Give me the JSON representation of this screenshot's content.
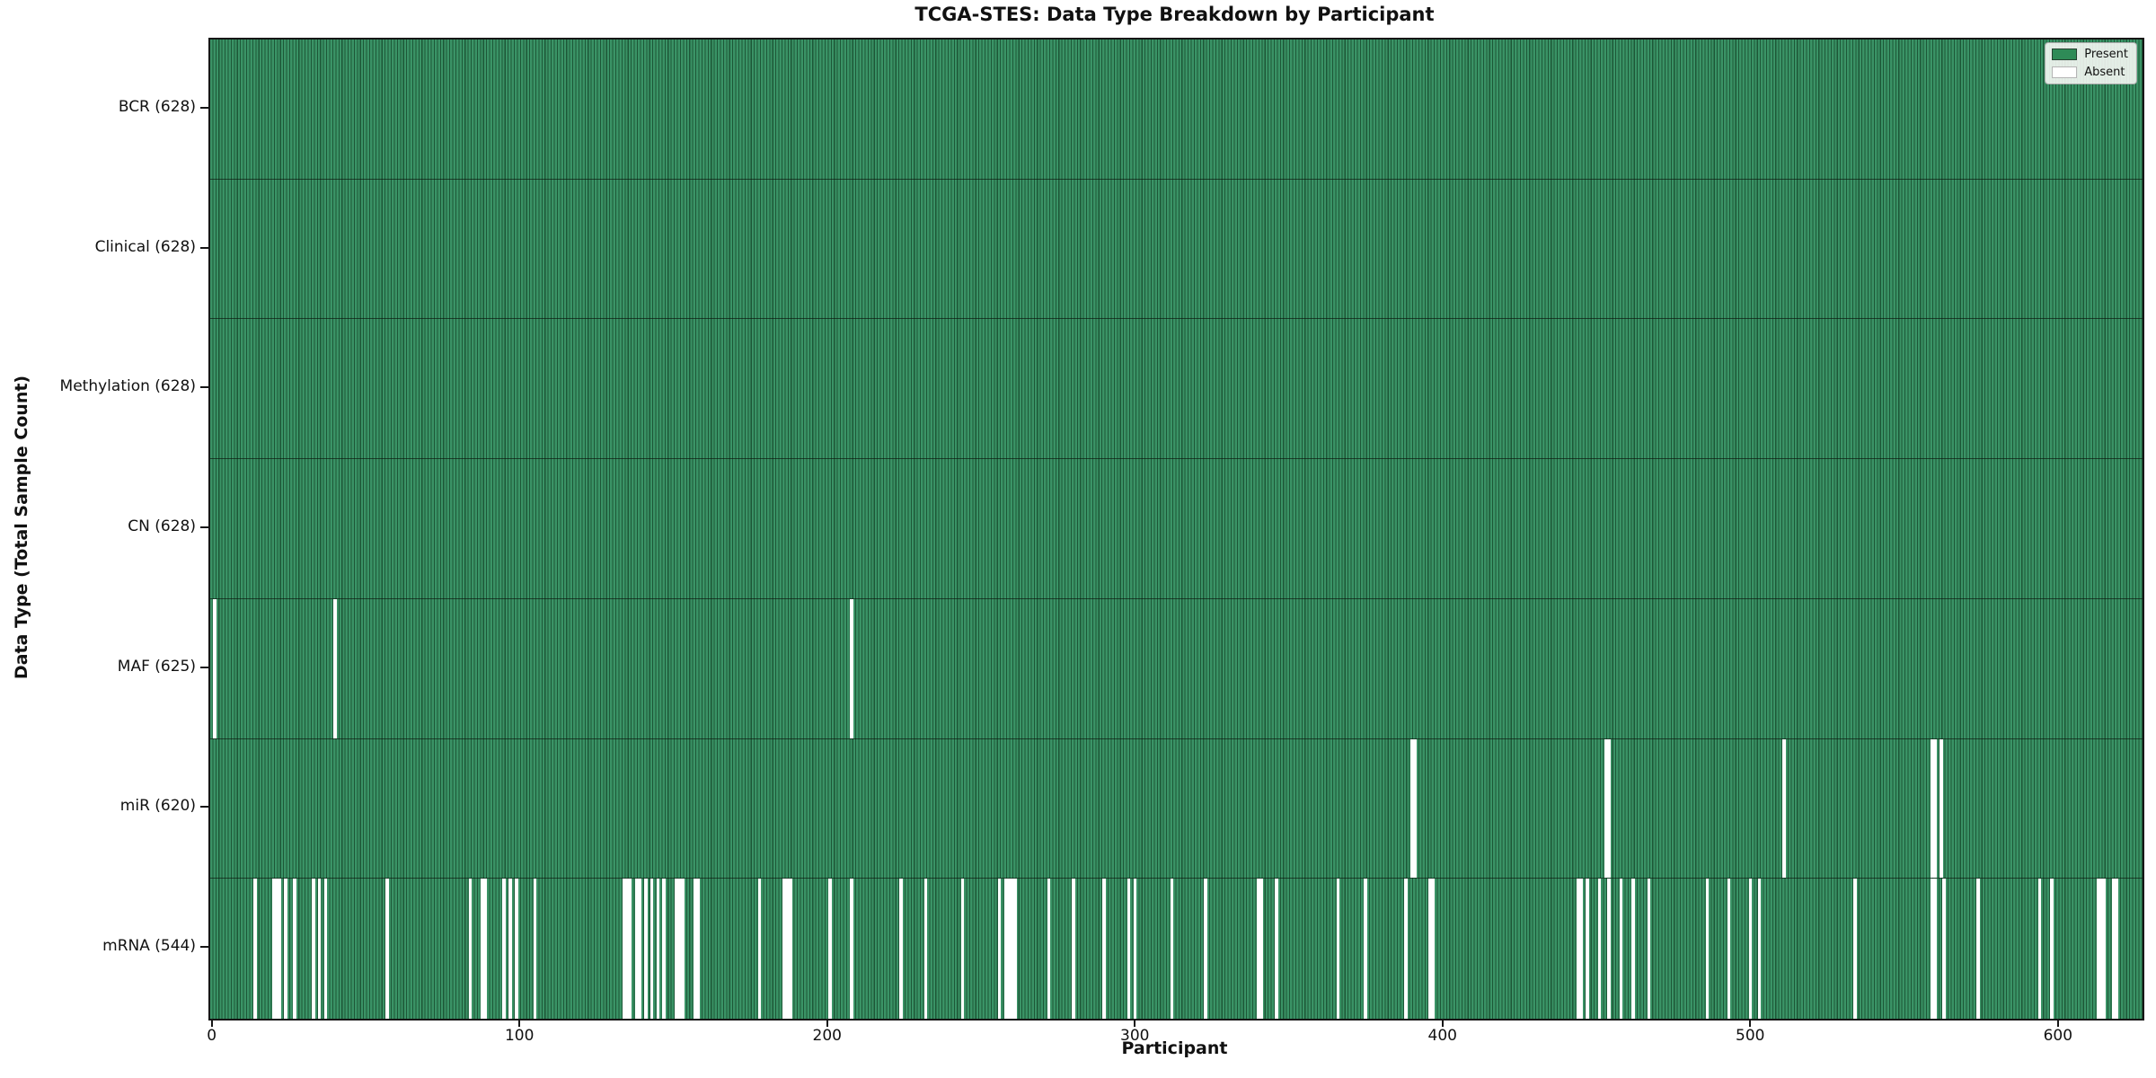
{
  "chart_data": {
    "type": "heatmap",
    "title": "TCGA-STES: Data Type Breakdown by Participant",
    "xlabel": "Participant",
    "ylabel": "Data Type (Total Sample Count)",
    "x_ticks": [
      0,
      100,
      200,
      300,
      400,
      500,
      600
    ],
    "xlim": [
      -0.5,
      627.5
    ],
    "n_participants": 628,
    "grid": false,
    "legend": {
      "position": "upper-right",
      "entries": [
        {
          "label": "Present",
          "color": "#2e8b57"
        },
        {
          "label": "Absent",
          "color": "#ffffff"
        }
      ]
    },
    "colors": {
      "present": "#2e8b57",
      "present_stripe_light": "#3a9366",
      "present_stripe_dark": "#1d5737",
      "absent": "#ffffff",
      "frame": "#161616"
    },
    "rows": [
      {
        "data_type": "BCR",
        "label": "BCR (628)",
        "present_count": 628,
        "total": 628,
        "absent_participants": []
      },
      {
        "data_type": "Clinical",
        "label": "Clinical (628)",
        "present_count": 628,
        "total": 628,
        "absent_participants": []
      },
      {
        "data_type": "Methylation",
        "label": "Methylation (628)",
        "present_count": 628,
        "total": 628,
        "absent_participants": []
      },
      {
        "data_type": "CN",
        "label": "CN (628)",
        "present_count": 628,
        "total": 628,
        "absent_participants": []
      },
      {
        "data_type": "MAF",
        "label": "MAF (625)",
        "present_count": 625,
        "total": 628,
        "absent_participants": [
          1,
          40,
          208
        ]
      },
      {
        "data_type": "miR",
        "label": "miR (620)",
        "present_count": 620,
        "total": 628,
        "absent_participants": [
          390,
          391,
          453,
          454,
          511,
          559,
          560,
          562
        ]
      },
      {
        "data_type": "mRNA",
        "label": "mRNA (544)",
        "present_count": 544,
        "total": 628,
        "absent_participants": [
          14,
          20,
          21,
          22,
          24,
          27,
          33,
          35,
          37,
          57,
          84,
          88,
          89,
          95,
          97,
          99,
          105,
          134,
          135,
          136,
          138,
          139,
          141,
          143,
          145,
          147,
          151,
          152,
          153,
          157,
          158,
          178,
          186,
          187,
          188,
          201,
          208,
          224,
          232,
          244,
          256,
          258,
          259,
          260,
          261,
          272,
          280,
          290,
          298,
          300,
          312,
          323,
          340,
          341,
          346,
          366,
          375,
          388,
          396,
          397,
          444,
          445,
          447,
          451,
          454,
          458,
          462,
          467,
          486,
          493,
          500,
          503,
          534,
          559,
          560,
          563,
          574,
          594,
          598,
          613,
          614,
          615,
          618,
          619
        ]
      }
    ]
  }
}
